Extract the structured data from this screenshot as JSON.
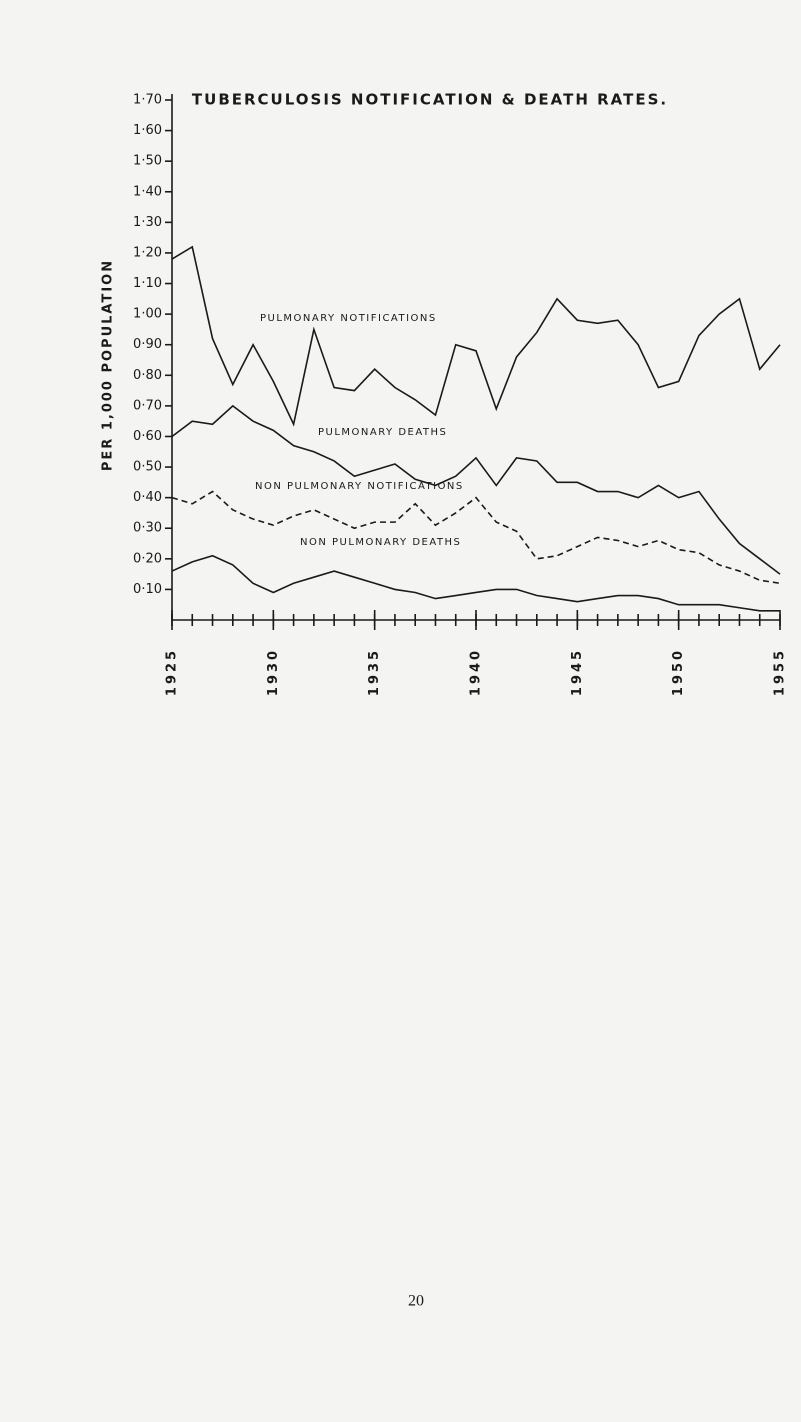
{
  "chart_data": {
    "type": "line",
    "title": "TUBERCULOSIS NOTIFICATION & DEATH RATES.",
    "y_label": "PER 1,000 POPULATION",
    "page_number": "20",
    "x": [
      1925,
      1926,
      1927,
      1928,
      1929,
      1930,
      1931,
      1932,
      1933,
      1934,
      1935,
      1936,
      1937,
      1938,
      1939,
      1940,
      1941,
      1942,
      1943,
      1944,
      1945,
      1946,
      1947,
      1948,
      1949,
      1950,
      1951,
      1952,
      1953,
      1954,
      1955
    ],
    "xlim": [
      1925,
      1955
    ],
    "xticks": [
      1925,
      1930,
      1935,
      1940,
      1945,
      1950,
      1955
    ],
    "ylim": [
      0,
      1.7
    ],
    "yticks": [
      {
        "value": 0.1,
        "label": "0·10"
      },
      {
        "value": 0.2,
        "label": "0·20"
      },
      {
        "value": 0.3,
        "label": "0·30"
      },
      {
        "value": 0.4,
        "label": "0·40"
      },
      {
        "value": 0.5,
        "label": "0·50"
      },
      {
        "value": 0.6,
        "label": "0·60"
      },
      {
        "value": 0.7,
        "label": "0·70"
      },
      {
        "value": 0.8,
        "label": "0·80"
      },
      {
        "value": 0.9,
        "label": "0·90"
      },
      {
        "value": 1.0,
        "label": "1·00"
      },
      {
        "value": 1.1,
        "label": "1·10"
      },
      {
        "value": 1.2,
        "label": "1·20"
      },
      {
        "value": 1.3,
        "label": "1·30"
      },
      {
        "value": 1.4,
        "label": "1·40"
      },
      {
        "value": 1.5,
        "label": "1·50"
      },
      {
        "value": 1.6,
        "label": "1·60"
      },
      {
        "value": 1.7,
        "label": "1·70"
      }
    ],
    "series": [
      {
        "name": "PULMONARY NOTIFICATIONS",
        "color": "#1a1a1a",
        "dash": false,
        "values": [
          1.18,
          1.22,
          0.92,
          0.77,
          0.9,
          0.78,
          0.64,
          0.95,
          0.76,
          0.75,
          0.82,
          0.76,
          0.72,
          0.67,
          0.9,
          0.88,
          0.69,
          0.86,
          0.94,
          1.05,
          0.98,
          0.97,
          0.98,
          0.9,
          0.76,
          0.78,
          0.93,
          1.0,
          1.05,
          0.82,
          0.9
        ]
      },
      {
        "name": "PULMONARY DEATHS",
        "color": "#1a1a1a",
        "dash": false,
        "values": [
          0.6,
          0.65,
          0.64,
          0.7,
          0.65,
          0.62,
          0.57,
          0.55,
          0.52,
          0.47,
          0.49,
          0.51,
          0.46,
          0.44,
          0.47,
          0.53,
          0.44,
          0.53,
          0.52,
          0.45,
          0.45,
          0.42,
          0.42,
          0.4,
          0.44,
          0.4,
          0.42,
          0.33,
          0.25,
          0.2,
          0.15
        ]
      },
      {
        "name": "NON PULMONARY NOTIFICATIONS",
        "color": "#1a1a1a",
        "dash": true,
        "values": [
          0.4,
          0.38,
          0.42,
          0.36,
          0.33,
          0.31,
          0.34,
          0.36,
          0.33,
          0.3,
          0.32,
          0.32,
          0.38,
          0.31,
          0.35,
          0.4,
          0.32,
          0.29,
          0.2,
          0.21,
          0.24,
          0.27,
          0.26,
          0.24,
          0.26,
          0.23,
          0.22,
          0.18,
          0.16,
          0.13,
          0.12
        ]
      },
      {
        "name": "NON PULMONARY DEATHS",
        "color": "#1a1a1a",
        "dash": false,
        "values": [
          0.16,
          0.19,
          0.21,
          0.18,
          0.12,
          0.09,
          0.12,
          0.14,
          0.16,
          0.14,
          0.12,
          0.1,
          0.09,
          0.07,
          0.08,
          0.09,
          0.1,
          0.1,
          0.08,
          0.07,
          0.06,
          0.07,
          0.08,
          0.08,
          0.07,
          0.05,
          0.05,
          0.05,
          0.04,
          0.03,
          0.03
        ]
      }
    ]
  }
}
